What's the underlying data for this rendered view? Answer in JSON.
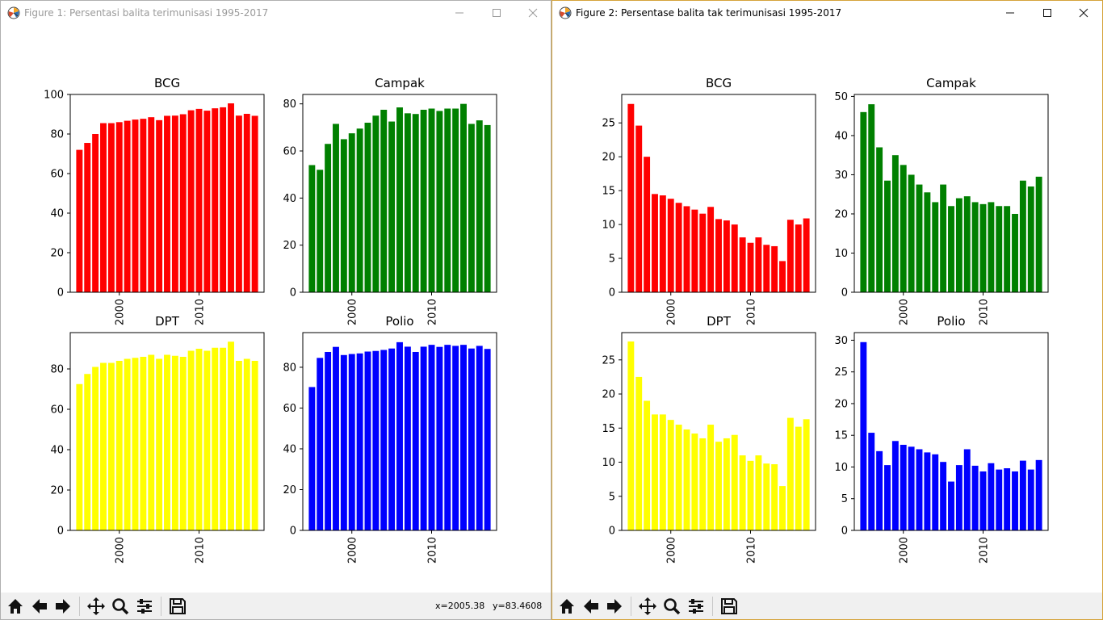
{
  "windows": [
    {
      "title": "Figure 1: Persentasi balita terimunisasi 1995-2017",
      "coords": {
        "x": "x=2005.38",
        "y": "y=83.4608"
      },
      "chart_data": [
        {
          "type": "bar",
          "title": "BCG",
          "color": "#ff0000",
          "x": [
            1995,
            1996,
            1997,
            1998,
            1999,
            2000,
            2001,
            2002,
            2003,
            2004,
            2005,
            2006,
            2007,
            2008,
            2009,
            2010,
            2011,
            2012,
            2013,
            2014,
            2015,
            2016,
            2017
          ],
          "values": [
            72,
            75.5,
            80,
            85.5,
            85.5,
            86,
            86.7,
            87.3,
            87.7,
            88.5,
            87,
            89.2,
            89.3,
            90,
            92,
            92.7,
            91.8,
            93,
            93.5,
            95.5,
            89.3,
            90.2,
            89.2
          ],
          "xticks": [
            2000,
            2010
          ],
          "xticklabels": [
            "2000",
            "2010"
          ],
          "ylim": [
            0,
            100
          ],
          "yticks": [
            0,
            20,
            40,
            60,
            80,
            100
          ]
        },
        {
          "type": "bar",
          "title": "Campak",
          "color": "#008000",
          "x": [
            1995,
            1996,
            1997,
            1998,
            1999,
            2000,
            2001,
            2002,
            2003,
            2004,
            2005,
            2006,
            2007,
            2008,
            2009,
            2010,
            2011,
            2012,
            2013,
            2014,
            2015,
            2016,
            2017
          ],
          "values": [
            54,
            52,
            63,
            71.5,
            65,
            67.5,
            69.5,
            72,
            75,
            77.5,
            72.5,
            78.5,
            76,
            75.7,
            77.5,
            78,
            77,
            78,
            78,
            80,
            71.5,
            73,
            71
          ],
          "xticks": [
            2000,
            2010
          ],
          "xticklabels": [
            "2000",
            "2010"
          ],
          "ylim": [
            0,
            84
          ],
          "yticks": [
            0,
            20,
            40,
            60,
            80
          ]
        },
        {
          "type": "bar",
          "title": "DPT",
          "color": "#ffff00",
          "x": [
            1995,
            1996,
            1997,
            1998,
            1999,
            2000,
            2001,
            2002,
            2003,
            2004,
            2005,
            2006,
            2007,
            2008,
            2009,
            2010,
            2011,
            2012,
            2013,
            2014,
            2015,
            2016,
            2017
          ],
          "values": [
            72.5,
            77.5,
            81,
            83,
            83,
            84,
            85,
            85.5,
            86,
            87,
            85,
            87,
            86.5,
            86,
            89,
            90,
            89,
            90.5,
            90.5,
            93.5,
            84,
            85,
            84
          ],
          "xticks": [
            2000,
            2010
          ],
          "xticklabels": [
            "2000",
            "2010"
          ],
          "ylim": [
            0,
            98
          ],
          "yticks": [
            0,
            20,
            40,
            60,
            80
          ]
        },
        {
          "type": "bar",
          "title": "Polio",
          "color": "#0000ff",
          "x": [
            1995,
            1996,
            1997,
            1998,
            1999,
            2000,
            2001,
            2002,
            2003,
            2004,
            2005,
            2006,
            2007,
            2008,
            2009,
            2010,
            2011,
            2012,
            2013,
            2014,
            2015,
            2016,
            2017
          ],
          "values": [
            70.3,
            84.6,
            87.5,
            90,
            86,
            86.5,
            86.8,
            87.7,
            88,
            88.5,
            89.2,
            92.3,
            90.1,
            87.5,
            90.1,
            91,
            90,
            91,
            90.5,
            91,
            89.2,
            90.5,
            89
          ],
          "xticks": [
            2000,
            2010
          ],
          "xticklabels": [
            "2000",
            "2010"
          ],
          "ylim": [
            0,
            97
          ],
          "yticks": [
            0,
            20,
            40,
            60,
            80
          ]
        }
      ]
    },
    {
      "title": "Figure 2: Persentase balita tak terimunisasi 1995-2017",
      "chart_data": [
        {
          "type": "bar",
          "title": "BCG",
          "color": "#ff0000",
          "x": [
            1995,
            1996,
            1997,
            1998,
            1999,
            2000,
            2001,
            2002,
            2003,
            2004,
            2005,
            2006,
            2007,
            2008,
            2009,
            2010,
            2011,
            2012,
            2013,
            2014,
            2015,
            2016,
            2017
          ],
          "values": [
            27.8,
            24.6,
            20,
            14.5,
            14.3,
            13.8,
            13.2,
            12.7,
            12.2,
            11.6,
            12.6,
            10.8,
            10.6,
            10,
            8.1,
            7.3,
            8.1,
            7,
            6.8,
            4.6,
            10.7,
            10,
            10.9
          ],
          "xticks": [
            2000,
            2010
          ],
          "xticklabels": [
            "2000",
            "2010"
          ],
          "ylim": [
            0,
            29.2
          ],
          "yticks": [
            0,
            5,
            10,
            15,
            20,
            25
          ]
        },
        {
          "type": "bar",
          "title": "Campak",
          "color": "#008000",
          "x": [
            1995,
            1996,
            1997,
            1998,
            1999,
            2000,
            2001,
            2002,
            2003,
            2004,
            2005,
            2006,
            2007,
            2008,
            2009,
            2010,
            2011,
            2012,
            2013,
            2014,
            2015,
            2016,
            2017
          ],
          "values": [
            46,
            48,
            37,
            28.5,
            35,
            32.5,
            30,
            27.5,
            25.5,
            23,
            27.5,
            22,
            24,
            24.5,
            23,
            22.5,
            23,
            22,
            22,
            20,
            28.5,
            27,
            29.5
          ],
          "xticks": [
            2000,
            2010
          ],
          "xticklabels": [
            "2000",
            "2010"
          ],
          "ylim": [
            0,
            50.5
          ],
          "yticks": [
            0,
            10,
            20,
            30,
            40,
            50
          ]
        },
        {
          "type": "bar",
          "title": "DPT",
          "color": "#ffff00",
          "x": [
            1995,
            1996,
            1997,
            1998,
            1999,
            2000,
            2001,
            2002,
            2003,
            2004,
            2005,
            2006,
            2007,
            2008,
            2009,
            2010,
            2011,
            2012,
            2013,
            2014,
            2015,
            2016,
            2017
          ],
          "values": [
            27.7,
            22.5,
            19,
            17,
            17,
            16.2,
            15.5,
            14.8,
            14.2,
            13.5,
            15.5,
            13,
            13.5,
            14,
            11,
            10.2,
            11,
            9.8,
            9.7,
            6.5,
            16.5,
            15.2,
            16.3
          ],
          "xticks": [
            2000,
            2010
          ],
          "xticklabels": [
            "2000",
            "2010"
          ],
          "ylim": [
            0,
            29
          ],
          "yticks": [
            0,
            5,
            10,
            15,
            20,
            25
          ]
        },
        {
          "type": "bar",
          "title": "Polio",
          "color": "#0000ff",
          "x": [
            1995,
            1996,
            1997,
            1998,
            1999,
            2000,
            2001,
            2002,
            2003,
            2004,
            2005,
            2006,
            2007,
            2008,
            2009,
            2010,
            2011,
            2012,
            2013,
            2014,
            2015,
            2016,
            2017
          ],
          "values": [
            29.7,
            15.4,
            12.5,
            10.3,
            14.1,
            13.5,
            13.2,
            12.8,
            12.3,
            12,
            10.8,
            7.7,
            10.3,
            12.8,
            10.2,
            9.3,
            10.6,
            9.6,
            9.8,
            9.3,
            11,
            9.6,
            11.1
          ],
          "xticks": [
            2000,
            2010
          ],
          "xticklabels": [
            "2000",
            "2010"
          ],
          "ylim": [
            0,
            31.2
          ],
          "yticks": [
            0,
            5,
            10,
            15,
            20,
            25,
            30
          ]
        }
      ]
    }
  ],
  "toolbar_icons": [
    "home-icon",
    "back-arrow-icon",
    "forward-arrow-icon",
    "pan-icon",
    "zoom-icon",
    "configure-subplots-icon",
    "save-icon"
  ]
}
